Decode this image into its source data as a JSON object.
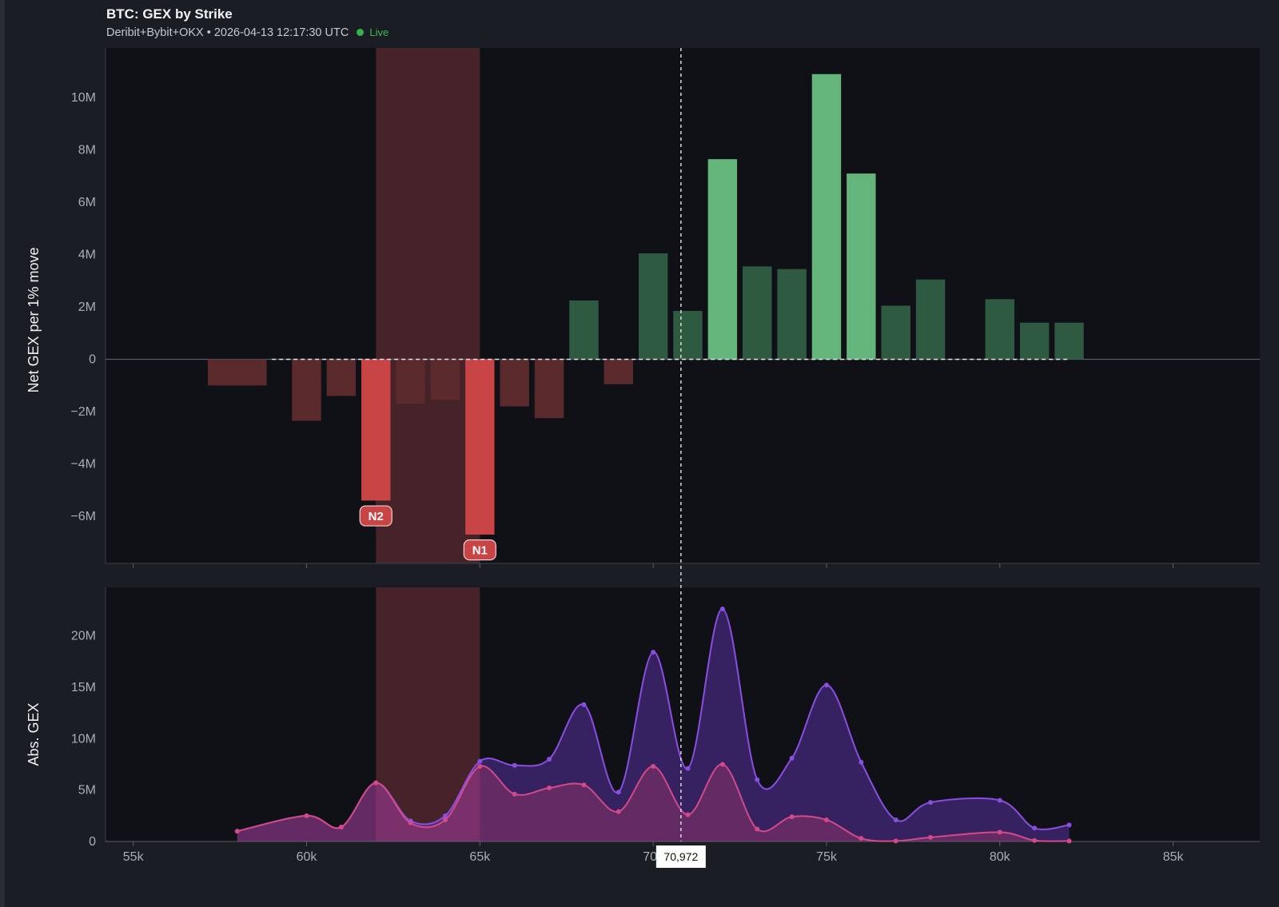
{
  "header": {
    "title": "BTC: GEX by Strike",
    "sources": "Deribit+Bybit+OKX",
    "separator": "•",
    "timestamp": "2026-04-13 12:17:30 UTC",
    "status": "Live"
  },
  "colors": {
    "background": "#1a1d24",
    "plot_bg": "#0f1117",
    "negative_strong": "#c94444",
    "negative_weak": "#5a2a2c",
    "positive_strong": "#63b57c",
    "positive_weak": "#2f5a42",
    "highlight_zone": "#4a2529",
    "abs_total": "#8a4ee0",
    "abs_negative": "#d24a8a",
    "live": "#33b24e"
  },
  "chart_data": [
    {
      "type": "bar",
      "ylabel": "Net GEX per 1% move",
      "xlim": [
        54200,
        87500
      ],
      "ylim": [
        -7.8,
        11.9
      ],
      "yticks": [
        -6,
        -4,
        -2,
        0,
        2,
        4,
        6,
        8,
        10
      ],
      "ytick_labels": [
        "−6M",
        "−4M",
        "−2M",
        "0",
        "2M",
        "4M",
        "6M",
        "8M",
        "10M"
      ],
      "highlight_zone": [
        62000,
        65000
      ],
      "cursor_x": 70800,
      "cursor_label": "70,972",
      "bars": [
        {
          "x": 58000,
          "value": -1.0,
          "width": 1700
        },
        {
          "x": 60000,
          "value": -2.35
        },
        {
          "x": 61000,
          "value": -1.4
        },
        {
          "x": 62000,
          "value": -5.4,
          "strong": true
        },
        {
          "x": 63000,
          "value": -1.7
        },
        {
          "x": 64000,
          "value": -1.55
        },
        {
          "x": 65000,
          "value": -6.7,
          "strong": true
        },
        {
          "x": 66000,
          "value": -1.8
        },
        {
          "x": 67000,
          "value": -2.25
        },
        {
          "x": 68000,
          "value": 2.25
        },
        {
          "x": 69000,
          "value": -0.95
        },
        {
          "x": 70000,
          "value": 4.05
        },
        {
          "x": 71000,
          "value": 1.85
        },
        {
          "x": 72000,
          "value": 7.65,
          "strong": true
        },
        {
          "x": 73000,
          "value": 3.55
        },
        {
          "x": 74000,
          "value": 3.45
        },
        {
          "x": 75000,
          "value": 10.9,
          "strong": true
        },
        {
          "x": 76000,
          "value": 7.1,
          "strong": true
        },
        {
          "x": 77000,
          "value": 2.05
        },
        {
          "x": 78000,
          "value": 3.05
        },
        {
          "x": 80000,
          "value": 2.3
        },
        {
          "x": 81000,
          "value": 1.4
        },
        {
          "x": 82000,
          "value": 1.4
        }
      ],
      "zero_line_range": [
        59000,
        82000
      ],
      "markers": [
        {
          "label": "N2",
          "x": 62000,
          "value": -6.0
        },
        {
          "label": "N1",
          "x": 65000,
          "value": -7.3
        }
      ]
    },
    {
      "type": "area",
      "ylabel": "Abs. GEX",
      "xlabel": "",
      "xlim": [
        54200,
        87500
      ],
      "ylim": [
        0,
        24.7
      ],
      "yticks": [
        0,
        5,
        10,
        15,
        20
      ],
      "ytick_labels": [
        "0",
        "5M",
        "10M",
        "15M",
        "20M"
      ],
      "xticks": [
        55000,
        60000,
        65000,
        70000,
        75000,
        80000,
        85000
      ],
      "xtick_labels": [
        "55k",
        "60k",
        "65k",
        "70k",
        "75k",
        "80k",
        "85k"
      ],
      "x": [
        58000,
        60000,
        61000,
        62000,
        63000,
        64000,
        65000,
        66000,
        67000,
        68000,
        69000,
        70000,
        71000,
        72000,
        73000,
        74000,
        75000,
        76000,
        77000,
        78000,
        80000,
        81000,
        82000
      ],
      "series": [
        {
          "values": [
            1.0,
            2.5,
            1.4,
            5.7,
            2.0,
            2.5,
            7.8,
            7.4,
            8.0,
            13.3,
            4.8,
            18.4,
            7.1,
            22.6,
            6.0,
            8.1,
            15.2,
            7.7,
            2.1,
            3.8,
            4.0,
            1.3,
            1.6
          ]
        },
        {
          "values": [
            1.0,
            2.5,
            1.4,
            5.7,
            1.8,
            2.1,
            7.3,
            4.6,
            5.2,
            5.5,
            2.9,
            7.3,
            2.6,
            7.5,
            1.2,
            2.4,
            2.1,
            0.3,
            0.05,
            0.4,
            0.9,
            0.1,
            0.05
          ]
        }
      ]
    }
  ]
}
